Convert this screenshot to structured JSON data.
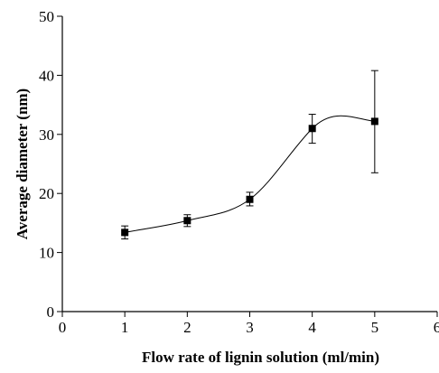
{
  "chart_data": {
    "type": "line",
    "title": "",
    "xlabel": "Flow rate of lignin solution (ml/min)",
    "ylabel": "Average diameter (nm)",
    "xlim": [
      0,
      6
    ],
    "ylim": [
      0,
      50
    ],
    "x_ticks": [
      0,
      1,
      2,
      3,
      4,
      5,
      6
    ],
    "y_ticks": [
      0,
      10,
      20,
      30,
      40,
      50
    ],
    "x_tick_labels": [
      "0",
      "1",
      "2",
      "3",
      "4",
      "5",
      "6"
    ],
    "y_tick_labels": [
      "0",
      "10",
      "20",
      "30",
      "40",
      "50"
    ],
    "grid": false,
    "legend": "none",
    "series": [
      {
        "marker": "square",
        "color": "#000000",
        "smooth_curve": true,
        "points": [
          {
            "x": 1,
            "y": 13.4,
            "err_low": 12.3,
            "err_high": 14.5
          },
          {
            "x": 2,
            "y": 15.4,
            "err_low": 14.4,
            "err_high": 16.4
          },
          {
            "x": 3,
            "y": 19.0,
            "err_low": 17.9,
            "err_high": 20.2
          },
          {
            "x": 4,
            "y": 31.0,
            "err_low": 28.5,
            "err_high": 33.4
          },
          {
            "x": 5,
            "y": 32.2,
            "err_low": 23.5,
            "err_high": 40.8
          }
        ]
      }
    ]
  }
}
